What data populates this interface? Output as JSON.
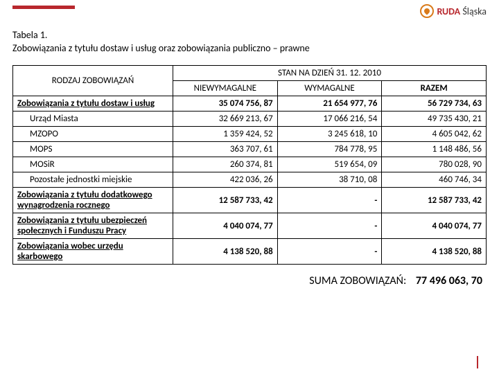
{
  "header": {
    "brand_bold": "RUDA",
    "brand_light": " Śląska"
  },
  "title": {
    "line1": "Tabela 1.",
    "line2": "Zobowiązania z tytułu dostaw i usług oraz zobowiązania publiczno – prawne"
  },
  "table": {
    "row_header": "RODZAJ ZOBOWIĄZAŃ",
    "group_header": "STAN NA DZIEŃ 31. 12. 2010",
    "col1": "NIEWYMAGALNE",
    "col2": "WYMAGALNE",
    "col3": "RAZEM",
    "rows": [
      {
        "label": "Zobowiązania  z tytułu dostaw i usług",
        "indent": false,
        "bold": true,
        "c1": "35 074 756, 87",
        "c2": "21 654 977, 76",
        "c3": "56 729 734, 63"
      },
      {
        "label": "Urząd Miasta",
        "indent": true,
        "bold": false,
        "c1": "32 669 213, 67",
        "c2": "17 066 216, 54",
        "c3": "49 735 430, 21"
      },
      {
        "label": "MZOPO",
        "indent": true,
        "bold": false,
        "c1": "1 359 424, 52",
        "c2": "3 245 618, 10",
        "c3": "4 605 042, 62"
      },
      {
        "label": "MOPS",
        "indent": true,
        "bold": false,
        "c1": "363 707, 61",
        "c2": "784 778, 95",
        "c3": "1 148 486, 56"
      },
      {
        "label": "MOSiR",
        "indent": true,
        "bold": false,
        "c1": "260 374, 81",
        "c2": "519 654, 09",
        "c3": "780 028, 90"
      },
      {
        "label": "Pozostałe jednostki miejskie",
        "indent": true,
        "bold": false,
        "c1": "422 036, 26",
        "c2": "38 710, 08",
        "c3": "460 746, 34"
      },
      {
        "label": "Zobowiązania z tytułu dodatkowego wynagrodzenia rocznego",
        "indent": false,
        "bold": true,
        "c1": "12 587 733, 42",
        "c2": "-",
        "c3": "12 587 733, 42"
      },
      {
        "label": "Zobowiązania z tytułu ubezpieczeń społecznych i Funduszu Pracy",
        "indent": false,
        "bold": true,
        "c1": "4 040 074, 77",
        "c2": "-",
        "c3": "4 040 074, 77"
      },
      {
        "label": "Zobowiązania wobec urzędu skarbowego",
        "indent": false,
        "bold": true,
        "c1": "4 138 520, 88",
        "c2": "-",
        "c3": "4 138 520, 88"
      }
    ]
  },
  "summary": {
    "label": "SUMA ZOBOWIĄZAŃ:",
    "value": "77 496 063, 70"
  },
  "colors": {
    "accent": "#b8272d",
    "logo": "#d97a1a"
  }
}
